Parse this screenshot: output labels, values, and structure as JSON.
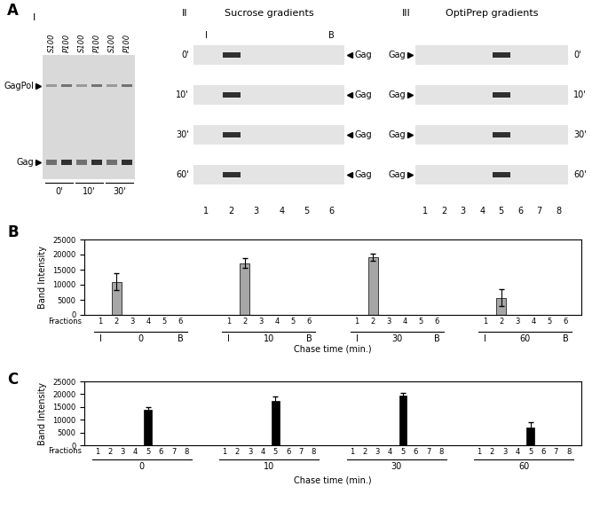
{
  "panel_labels": [
    "A",
    "B",
    "C"
  ],
  "gels": [
    {
      "numeral": "I",
      "lane_labels": [
        "S100",
        "P100",
        "S100",
        "P100",
        "S100",
        "P100"
      ],
      "times": [
        "0'",
        "10'",
        "30'"
      ],
      "bands": [
        "GagPol",
        "Gag"
      ]
    },
    {
      "numeral": "II",
      "title": "Sucrose gradients",
      "lanes": [
        "1",
        "2",
        "3",
        "4",
        "5",
        "6"
      ],
      "end_labels": [
        "I",
        "B"
      ],
      "rows": [
        "0'",
        "10'",
        "30'",
        "60'"
      ],
      "band": "Gag",
      "band_lane": 2
    },
    {
      "numeral": "III",
      "title": "OptiPrep gradients",
      "lanes": [
        "1",
        "2",
        "3",
        "4",
        "5",
        "6",
        "7",
        "8"
      ],
      "rows": [
        "0'",
        "10'",
        "30'",
        "60'"
      ],
      "band": "Gag",
      "band_lane": 5
    }
  ],
  "chart_data": [
    {
      "type": "bar",
      "ylabel": "Band Intensity",
      "xlabel": "Chase time (min.)",
      "row_label": "Fractions",
      "ylim": [
        0,
        25000
      ],
      "yticks": [
        0,
        5000,
        10000,
        15000,
        20000,
        25000
      ],
      "color": "#a6a6a6",
      "group_end_labels": [
        "I",
        "B"
      ],
      "groups": [
        {
          "name": "0",
          "categories": [
            "1",
            "2",
            "3",
            "4",
            "5",
            "6"
          ],
          "values": [
            0,
            11000,
            0,
            0,
            0,
            0
          ],
          "errors": [
            null,
            2800,
            null,
            null,
            null,
            null
          ]
        },
        {
          "name": "10",
          "categories": [
            "1",
            "2",
            "3",
            "4",
            "5",
            "6"
          ],
          "values": [
            0,
            17200,
            0,
            0,
            0,
            0
          ],
          "errors": [
            null,
            1500,
            null,
            null,
            null,
            null
          ]
        },
        {
          "name": "30",
          "categories": [
            "1",
            "2",
            "3",
            "4",
            "5",
            "6"
          ],
          "values": [
            0,
            19000,
            0,
            0,
            0,
            0
          ],
          "errors": [
            null,
            1200,
            null,
            null,
            null,
            null
          ]
        },
        {
          "name": "60",
          "categories": [
            "1",
            "2",
            "3",
            "4",
            "5",
            "6"
          ],
          "values": [
            0,
            5700,
            0,
            0,
            0,
            0
          ],
          "errors": [
            null,
            2700,
            null,
            null,
            null,
            null
          ]
        }
      ]
    },
    {
      "type": "bar",
      "ylabel": "Band Intensity",
      "xlabel": "Chase time (min.)",
      "row_label": "Fractions",
      "ylim": [
        0,
        25000
      ],
      "yticks": [
        0,
        5000,
        10000,
        15000,
        20000,
        25000
      ],
      "color": "#000000",
      "groups": [
        {
          "name": "0",
          "categories": [
            "1",
            "2",
            "3",
            "4",
            "5",
            "6",
            "7",
            "8"
          ],
          "values": [
            0,
            0,
            0,
            0,
            13800,
            0,
            0,
            0
          ],
          "errors": [
            null,
            null,
            null,
            null,
            1000,
            null,
            null,
            null
          ]
        },
        {
          "name": "10",
          "categories": [
            "1",
            "2",
            "3",
            "4",
            "5",
            "6",
            "7",
            "8"
          ],
          "values": [
            0,
            0,
            0,
            0,
            17200,
            0,
            0,
            0
          ],
          "errors": [
            null,
            null,
            null,
            null,
            2000,
            null,
            null,
            null
          ]
        },
        {
          "name": "30",
          "categories": [
            "1",
            "2",
            "3",
            "4",
            "5",
            "6",
            "7",
            "8"
          ],
          "values": [
            0,
            0,
            0,
            0,
            19500,
            0,
            0,
            0
          ],
          "errors": [
            null,
            null,
            null,
            null,
            1000,
            null,
            null,
            null
          ]
        },
        {
          "name": "60",
          "categories": [
            "1",
            "2",
            "3",
            "4",
            "5",
            "6",
            "7",
            "8"
          ],
          "values": [
            0,
            0,
            0,
            0,
            7000,
            0,
            0,
            0
          ],
          "errors": [
            null,
            null,
            null,
            null,
            2200,
            null,
            null,
            null
          ]
        }
      ]
    }
  ]
}
